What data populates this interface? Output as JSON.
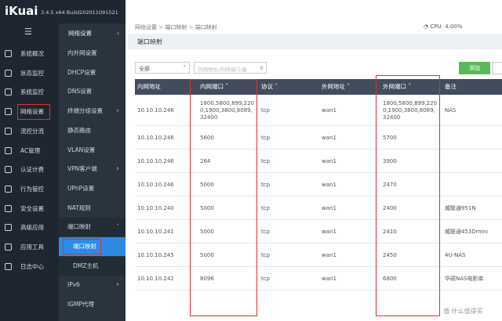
{
  "header": {
    "logo": "iKuai",
    "version": "3.4.5 x64 Build202011091521",
    "cpu": "CPU: 4.00%"
  },
  "breadcrumb": [
    "网络设置",
    "端口映射",
    "端口映射"
  ],
  "main_menu": [
    "系统概况",
    "状态监控",
    "系统监控",
    "网络设置",
    "流控分流",
    "AC管理",
    "认证计费",
    "行为管控",
    "安全设置",
    "高级应用",
    "应用工具",
    "日志中心"
  ],
  "sub_menu": {
    "title": "网络设置",
    "items": [
      "内外网设置",
      "DHCP设置",
      "DNS设置",
      "终端分组设置",
      "静态路由",
      "VLAN设置",
      "VPN客户端",
      "UPnP设置",
      "NAT规则",
      "端口映射",
      "端口映射",
      "DMZ主机",
      "IPv6",
      "IGMP代理"
    ]
  },
  "tab": "端口映射",
  "toolbar": {
    "filter": "全部",
    "search_placeholder": "内网地址/内网端口/备",
    "add_button": "添加"
  },
  "table": {
    "columns": [
      "内网地址",
      "内网端口",
      "协议",
      "外网地址",
      "外网端口",
      "备注"
    ],
    "rows": [
      [
        "10.10.10.246",
        "1800,5800,899,2200,1900,3800,8089,32400",
        "tcp",
        "wan1",
        "1800,5800,899,2200,1900,3800,8089,32400",
        "NAS"
      ],
      [
        "10.10.10.246",
        "5600",
        "tcp",
        "wan1",
        "5700",
        ""
      ],
      [
        "10.10.10.246",
        "264",
        "tcp",
        "wan1",
        "3900",
        ""
      ],
      [
        "10.10.10.246",
        "5000",
        "tcp",
        "wan1",
        "2470",
        ""
      ],
      [
        "10.10.10.240",
        "5000",
        "tcp",
        "wan1",
        "2400",
        "威联通951N"
      ],
      [
        "10.10.10.241",
        "5000",
        "tcp",
        "wan1",
        "2410",
        "威联通453Dmini"
      ],
      [
        "10.10.10.245",
        "5000",
        "tcp",
        "wan1",
        "2450",
        "4U-NAS"
      ],
      [
        "10.10.10.242",
        "8096",
        "tcp",
        "wan1",
        "6800",
        "华硕NAS电影库"
      ]
    ]
  },
  "watermark": "什么值得买"
}
